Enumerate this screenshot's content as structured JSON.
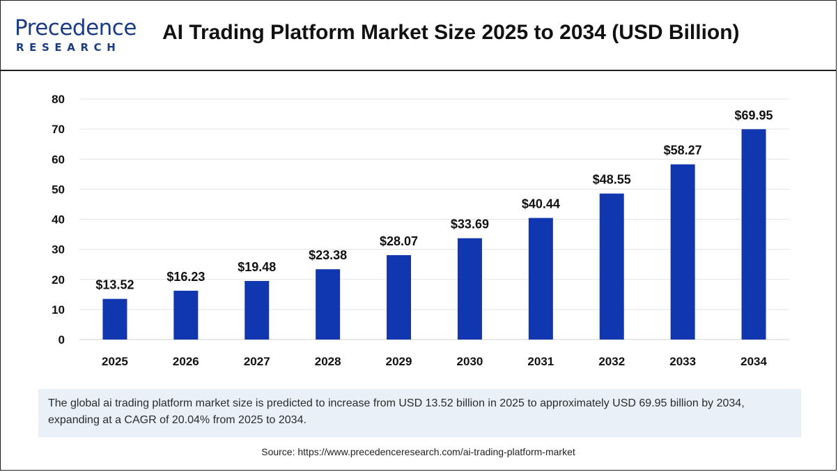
{
  "header": {
    "logo_line1": "Precedence",
    "logo_line2": "RESEARCH"
  },
  "chart_data": {
    "type": "bar",
    "title": "AI Trading Platform Market Size 2025 to 2034 (USD Billion)",
    "xlabel": "",
    "ylabel": "",
    "categories": [
      "2025",
      "2026",
      "2027",
      "2028",
      "2029",
      "2030",
      "2031",
      "2032",
      "2033",
      "2034"
    ],
    "values": [
      13.52,
      16.23,
      19.48,
      23.38,
      28.07,
      33.69,
      40.44,
      48.55,
      58.27,
      69.95
    ],
    "data_labels": [
      "$13.52",
      "$16.23",
      "$19.48",
      "$23.38",
      "$28.07",
      "$33.69",
      "$40.44",
      "$48.55",
      "$58.27",
      "$69.95"
    ],
    "ylim": [
      0,
      80
    ],
    "yticks": [
      "0",
      "10",
      "20",
      "30",
      "40",
      "50",
      "60",
      "70",
      "80"
    ],
    "grid": true,
    "bar_color": "#1137b0",
    "grid_color": "#e3e3e3"
  },
  "caption": "The global ai trading platform market size is predicted to increase from USD 13.52 billion in 2025 to approximately USD 69.95 billion by 2034, expanding at a CAGR of 20.04% from 2025 to 2034.",
  "source": "Source: https://www.precedenceresearch.com/ai-trading-platform-market"
}
